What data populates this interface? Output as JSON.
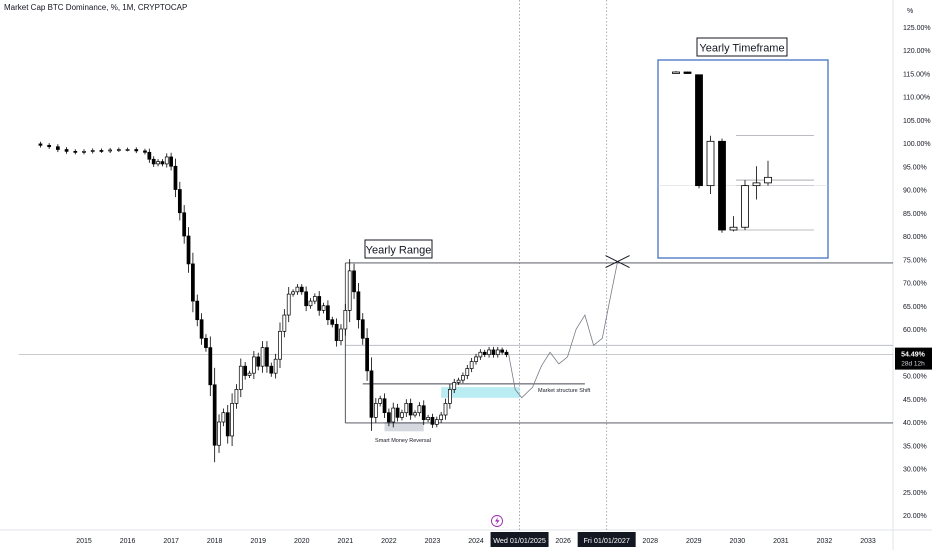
{
  "chart_title": "Market Cap BTC Dominance, %, 1M, CRYPTOCAP",
  "chart_data": {
    "type": "candlestick",
    "title": "Market Cap BTC Dominance, %, 1M, CRYPTOCAP",
    "y_unit": "%",
    "ylim": [
      16,
      128
    ],
    "y_ticks": [
      "125.00%",
      "120.00%",
      "115.00%",
      "110.00%",
      "105.00%",
      "100.00%",
      "95.00%",
      "90.00%",
      "85.00%",
      "80.00%",
      "75.00%",
      "70.00%",
      "65.00%",
      "60.00%",
      "55.00%",
      "50.00%",
      "45.00%",
      "40.00%",
      "35.00%",
      "30.00%",
      "25.00%",
      "20.00%"
    ],
    "y_tick_values": [
      125,
      120,
      115,
      110,
      105,
      100,
      95,
      90,
      85,
      80,
      75,
      70,
      65,
      60,
      55,
      50,
      45,
      40,
      35,
      30,
      25,
      20
    ],
    "x_ticks": [
      "2015",
      "2016",
      "2017",
      "2018",
      "2019",
      "2020",
      "2021",
      "2022",
      "2023",
      "2024",
      "2026",
      "2028",
      "2029",
      "2030",
      "2031",
      "2032",
      "2033"
    ],
    "x_tick_years": [
      2015,
      2016,
      2017,
      2018,
      2019,
      2020,
      2021,
      2022,
      2023,
      2024,
      2026,
      2028,
      2029,
      2030,
      2031,
      2032,
      2033
    ],
    "x_highlight_labels": [
      {
        "label": "Wed 01/01/2025",
        "year": 2025
      },
      {
        "label": "Fri 01/01/2027",
        "year": 2027
      }
    ],
    "xlim": [
      2013.5,
      2034.2
    ],
    "current_price": {
      "label": "54.49%",
      "countdown": "28d 12h",
      "value": 54.49
    },
    "monthly_close": [
      [
        2014.0,
        99.5
      ],
      [
        2014.2,
        99.2
      ],
      [
        2014.4,
        98.6
      ],
      [
        2014.6,
        98.2
      ],
      [
        2014.8,
        98.0
      ],
      [
        2015.0,
        98.2
      ],
      [
        2015.2,
        98.4
      ],
      [
        2015.4,
        98.3
      ],
      [
        2015.6,
        98.5
      ],
      [
        2015.8,
        98.6
      ],
      [
        2016.0,
        98.6
      ],
      [
        2016.2,
        98.3
      ],
      [
        2016.4,
        98.0
      ],
      [
        2016.5,
        96.5
      ],
      [
        2016.6,
        95.5
      ],
      [
        2016.7,
        96.0
      ],
      [
        2016.8,
        95.5
      ],
      [
        2016.9,
        97.0
      ],
      [
        2017.0,
        95.0
      ],
      [
        2017.1,
        90.0
      ],
      [
        2017.2,
        85.0
      ],
      [
        2017.3,
        80.0
      ],
      [
        2017.4,
        74.0
      ],
      [
        2017.5,
        66.0
      ],
      [
        2017.6,
        62.0
      ],
      [
        2017.7,
        58.0
      ],
      [
        2017.8,
        56.0
      ],
      [
        2017.9,
        48.0
      ],
      [
        2018.0,
        35.0
      ],
      [
        2018.1,
        40.0
      ],
      [
        2018.2,
        42.0
      ],
      [
        2018.3,
        37.0
      ],
      [
        2018.4,
        44.0
      ],
      [
        2018.5,
        47.0
      ],
      [
        2018.6,
        52.0
      ],
      [
        2018.7,
        50.0
      ],
      [
        2018.8,
        50.5
      ],
      [
        2018.9,
        54.0
      ],
      [
        2019.0,
        52.0
      ],
      [
        2019.1,
        56.0
      ],
      [
        2019.2,
        52.0
      ],
      [
        2019.3,
        50.5
      ],
      [
        2019.4,
        53.5
      ],
      [
        2019.5,
        59.5
      ],
      [
        2019.6,
        63.0
      ],
      [
        2019.7,
        67.5
      ],
      [
        2019.8,
        68.0
      ],
      [
        2019.9,
        69.0
      ],
      [
        2020.0,
        68.0
      ],
      [
        2020.1,
        65.0
      ],
      [
        2020.2,
        66.0
      ],
      [
        2020.3,
        67.0
      ],
      [
        2020.4,
        64.0
      ],
      [
        2020.5,
        65.0
      ],
      [
        2020.6,
        62.0
      ],
      [
        2020.7,
        61.0
      ],
      [
        2020.8,
        57.5
      ],
      [
        2020.9,
        60.0
      ],
      [
        2021.0,
        64.0
      ],
      [
        2021.1,
        72.5
      ],
      [
        2021.2,
        68.0
      ],
      [
        2021.3,
        62.0
      ],
      [
        2021.4,
        58.0
      ],
      [
        2021.5,
        51.0
      ],
      [
        2021.6,
        41.0
      ],
      [
        2021.7,
        44.0
      ],
      [
        2021.8,
        45.0
      ],
      [
        2021.9,
        42.0
      ],
      [
        2022.0,
        40.0
      ],
      [
        2022.1,
        43.0
      ],
      [
        2022.2,
        41.0
      ],
      [
        2022.3,
        42.0
      ],
      [
        2022.4,
        44.0
      ],
      [
        2022.5,
        41.5
      ],
      [
        2022.6,
        42.0
      ],
      [
        2022.7,
        43.5
      ],
      [
        2022.8,
        40.5
      ],
      [
        2022.9,
        41.0
      ],
      [
        2023.0,
        39.5
      ],
      [
        2023.1,
        40.5
      ],
      [
        2023.2,
        41.5
      ],
      [
        2023.3,
        44.0
      ],
      [
        2023.4,
        47.0
      ],
      [
        2023.5,
        48.5
      ],
      [
        2023.6,
        49.0
      ],
      [
        2023.7,
        50.0
      ],
      [
        2023.8,
        51.5
      ],
      [
        2023.9,
        53.0
      ],
      [
        2024.0,
        54.0
      ],
      [
        2024.1,
        55.0
      ],
      [
        2024.2,
        54.5
      ],
      [
        2024.3,
        55.5
      ],
      [
        2024.4,
        54.5
      ],
      [
        2024.5,
        55.5
      ],
      [
        2024.6,
        55.0
      ],
      [
        2024.7,
        54.49
      ]
    ],
    "projection_path": [
      [
        2024.75,
        54.5
      ],
      [
        2024.9,
        47.0
      ],
      [
        2025.05,
        45.2
      ],
      [
        2025.3,
        47.5
      ],
      [
        2025.5,
        52.0
      ],
      [
        2025.7,
        55.0
      ],
      [
        2025.9,
        52.5
      ],
      [
        2026.1,
        54.0
      ],
      [
        2026.3,
        60.0
      ],
      [
        2026.5,
        63.0
      ],
      [
        2026.7,
        56.5
      ],
      [
        2026.9,
        58.0
      ],
      [
        2027.1,
        67.5
      ],
      [
        2027.25,
        74.5
      ]
    ],
    "levels": [
      {
        "name": "yearly-range-high",
        "value": 74.2,
        "from": 2021.0,
        "to": 2034.2
      },
      {
        "name": "range-mid",
        "value": 56.5,
        "from": 2021.0,
        "to": 2034.2
      },
      {
        "name": "range-low",
        "value": 39.8,
        "from": 2021.0,
        "to": 2034.2
      },
      {
        "name": "structure-high",
        "value": 48.2,
        "from": 2021.4,
        "to": 2026.5
      },
      {
        "name": "current-price-line",
        "value": 54.49,
        "from": 2013.5,
        "to": 2034.2
      }
    ],
    "zones": [
      {
        "name": "market-structure-zone",
        "from": 2023.2,
        "to": 2025.0,
        "y_from": 45.2,
        "y_to": 47.5,
        "color": "#b2ebf2"
      },
      {
        "name": "smart-money-zone",
        "from": 2021.9,
        "to": 2022.8,
        "y_from": 38.0,
        "y_to": 40.0,
        "color": "#d1d4dc"
      }
    ],
    "target_marker": {
      "x": 2027.25,
      "y": 74.5
    },
    "vertical_markers": [
      2025.0,
      2027.0
    ],
    "annotations": {
      "yearly_range": "Yearly Range",
      "yearly_timeframe": "Yearly Timeframe",
      "market_structure_shift": "Market structure Shift",
      "smart_money_reversal": "Smart Money Reversal"
    },
    "inset_yearly_candles": [
      {
        "open": 96,
        "close": 96,
        "high": 96.3,
        "low": 95.8
      },
      {
        "open": 96,
        "close": 95.6,
        "high": 96.2,
        "low": 95.4
      },
      {
        "open": 95,
        "close": 55,
        "high": 95,
        "low": 54
      },
      {
        "open": 55,
        "close": 71,
        "high": 73,
        "low": 52
      },
      {
        "open": 71,
        "close": 39,
        "high": 72,
        "low": 38
      },
      {
        "open": 39,
        "close": 40,
        "high": 44,
        "low": 38.5
      },
      {
        "open": 40,
        "close": 55,
        "high": 57,
        "low": 39
      },
      {
        "open": 55,
        "close": 56,
        "high": 62,
        "low": 50
      },
      {
        "open": 56,
        "close": 58,
        "high": 64,
        "low": 55
      }
    ]
  },
  "colors": {
    "bull": "#ffffff",
    "bear": "#000000",
    "axis_text": "#131722",
    "grid": "#f0f3fa",
    "inset_border": "#4472c4",
    "projection": "#787b86",
    "current_tag_bg": "#000000",
    "current_tag_text": "#ffffff",
    "lightning": "#9c27b0"
  },
  "icons": {
    "lightning": "lightning-icon"
  }
}
